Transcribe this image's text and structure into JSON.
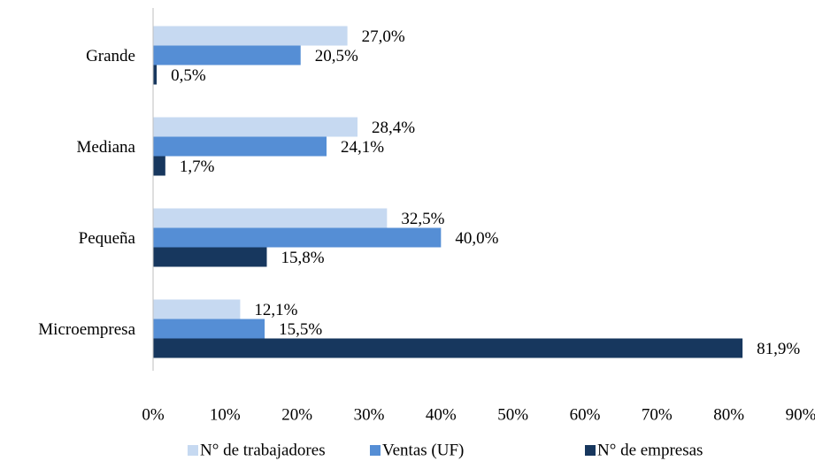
{
  "chart_data": {
    "type": "hbar",
    "categories": [
      "Grande",
      "Mediana",
      "Pequeña",
      "Microempresa"
    ],
    "series": [
      {
        "name": "N° de trabajadores",
        "color": "#c6d9f1",
        "values": [
          27.0,
          28.4,
          32.5,
          12.1
        ],
        "value_labels": [
          "27,0%",
          "28,4%",
          "32,5%",
          "12,1%"
        ]
      },
      {
        "name": "Ventas (UF)",
        "color": "#558ed5",
        "values": [
          20.5,
          24.1,
          40.0,
          15.5
        ],
        "value_labels": [
          "20,5%",
          "24,1%",
          "40,0%",
          "15,5%"
        ]
      },
      {
        "name": "N° de empresas",
        "color": "#17375e",
        "values": [
          0.5,
          1.7,
          15.8,
          81.9
        ],
        "value_labels": [
          "0,5%",
          "1,7%",
          "15,8%",
          "81,9%"
        ]
      }
    ],
    "xlim": [
      0,
      90
    ],
    "xticks": [
      {
        "value": 0,
        "label": "0%"
      },
      {
        "value": 10,
        "label": "10%"
      },
      {
        "value": 20,
        "label": "20%"
      },
      {
        "value": 30,
        "label": "30%"
      },
      {
        "value": 40,
        "label": "40%"
      },
      {
        "value": 50,
        "label": "50%"
      },
      {
        "value": 60,
        "label": "60%"
      },
      {
        "value": 70,
        "label": "70%"
      },
      {
        "value": 80,
        "label": "80%"
      },
      {
        "value": 90,
        "label": "90%"
      }
    ],
    "grid": false,
    "legend": "bottom"
  }
}
